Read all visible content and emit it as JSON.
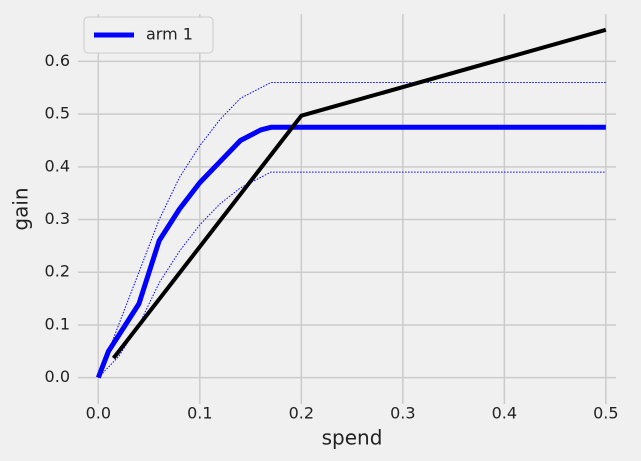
{
  "chart_data": {
    "type": "line",
    "xlabel": "spend",
    "ylabel": "gain",
    "xlim": [
      -0.02,
      0.51
    ],
    "ylim": [
      -0.05,
      0.69
    ],
    "xticks": [
      {
        "value": 0,
        "label": "0.0"
      },
      0.1,
      0.2,
      0.3,
      0.4,
      0.5
    ],
    "yticks": [
      {
        "value": 0,
        "label": "0.0"
      },
      0.1,
      0.2,
      0.3,
      0.4,
      0.5,
      0.6
    ],
    "grid": true,
    "legend": "upper-left",
    "series": [
      {
        "name": "arm 1",
        "color": "#0000ff",
        "style": "solid",
        "width": 5,
        "x": [
          0,
          0.01,
          0.02,
          0.04,
          0.05,
          0.06,
          0.08,
          0.1,
          0.12,
          0.14,
          0.16,
          0.17,
          0.5
        ],
        "values": [
          0,
          0.05,
          0.08,
          0.14,
          0.2,
          0.26,
          0.32,
          0.37,
          0.41,
          0.45,
          0.47,
          0.475,
          0.475
        ]
      },
      {
        "color": "#0000ff",
        "style": "dotted",
        "width": 1,
        "x": [
          0,
          0.02,
          0.04,
          0.06,
          0.08,
          0.1,
          0.12,
          0.14,
          0.16,
          0.17,
          0.5
        ],
        "values": [
          0,
          0.1,
          0.2,
          0.3,
          0.38,
          0.44,
          0.49,
          0.53,
          0.55,
          0.56,
          0.56
        ]
      },
      {
        "color": "#0000ff",
        "style": "dotted",
        "width": 1,
        "x": [
          0,
          0.02,
          0.04,
          0.06,
          0.08,
          0.1,
          0.12,
          0.14,
          0.16,
          0.17,
          0.5
        ],
        "values": [
          0,
          0.04,
          0.1,
          0.18,
          0.24,
          0.29,
          0.33,
          0.36,
          0.38,
          0.39,
          0.39
        ]
      },
      {
        "color": "#000000",
        "style": "solid",
        "width": 4,
        "x": [
          0.015,
          0.2,
          0.5
        ],
        "values": [
          0.037,
          0.497,
          0.66
        ]
      }
    ]
  }
}
